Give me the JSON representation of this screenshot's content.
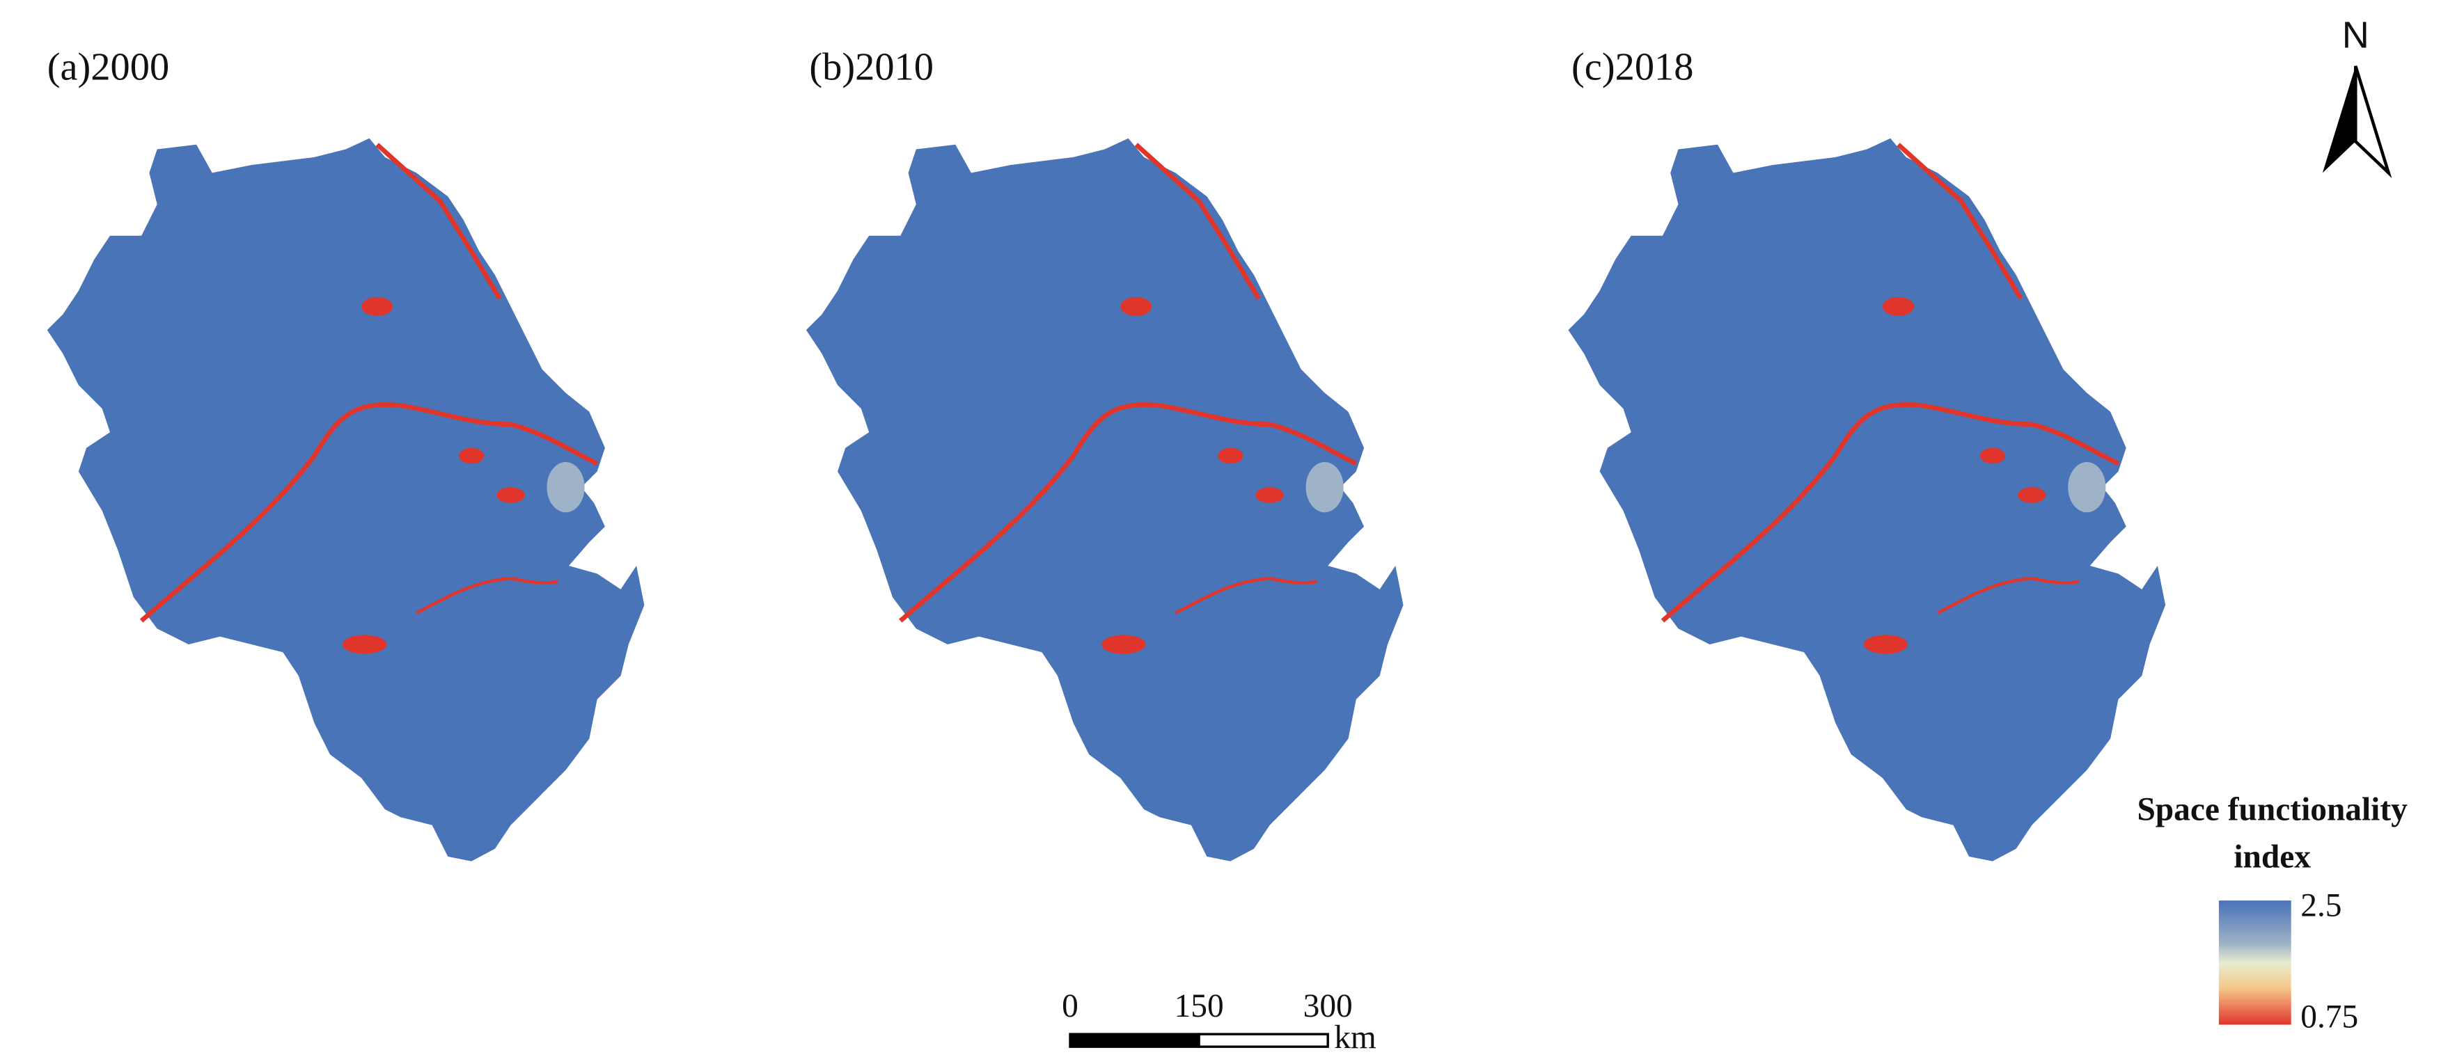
{
  "panels": [
    {
      "title": "(a)2000"
    },
    {
      "title": "(b)2010"
    },
    {
      "title": "(c)2018"
    }
  ],
  "north_arrow": {
    "label": "N"
  },
  "legend": {
    "title_lines": [
      "Space functionality",
      "index"
    ],
    "max": 2.5,
    "min": 0.75
  },
  "scale_bar": {
    "ticks": [
      0,
      150,
      300
    ],
    "unit": "km"
  }
}
